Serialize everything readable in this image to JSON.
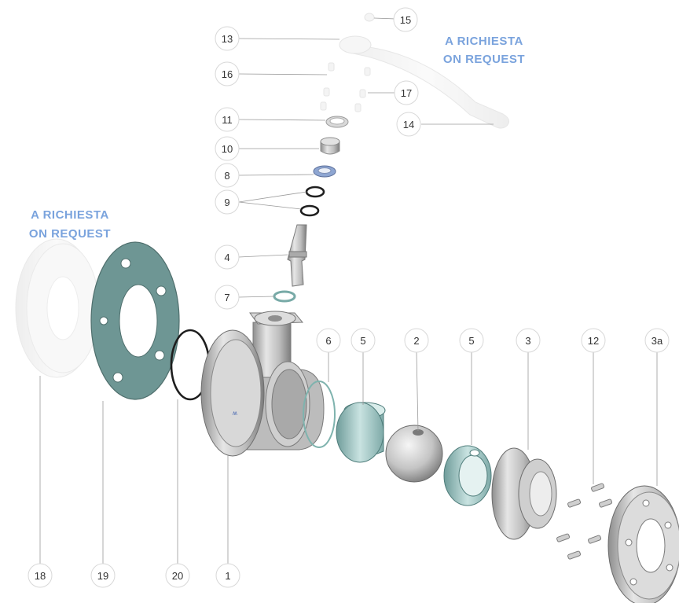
{
  "notes": {
    "top_right": {
      "line1": "A RICHIESTA",
      "line2": "ON REQUEST"
    },
    "left": {
      "line1": "A RICHIESTA",
      "line2": "ON REQUEST"
    }
  },
  "callouts": {
    "c15": "15",
    "c13": "13",
    "c16": "16",
    "c17": "17",
    "c11": "11",
    "c14": "14",
    "c10": "10",
    "c8": "8",
    "c9": "9",
    "c4": "4",
    "c7": "7",
    "c6": "6",
    "c5a": "5",
    "c2": "2",
    "c5b": "5",
    "c3": "3",
    "c12": "12",
    "c3a": "3a",
    "c18": "18",
    "c19": "19",
    "c20": "20",
    "c1": "1"
  },
  "colors": {
    "accent_text": "#7aa3dd",
    "gasket": "#6e9694",
    "seat": "#a8cfcd",
    "metal": "#c9c9c9"
  }
}
